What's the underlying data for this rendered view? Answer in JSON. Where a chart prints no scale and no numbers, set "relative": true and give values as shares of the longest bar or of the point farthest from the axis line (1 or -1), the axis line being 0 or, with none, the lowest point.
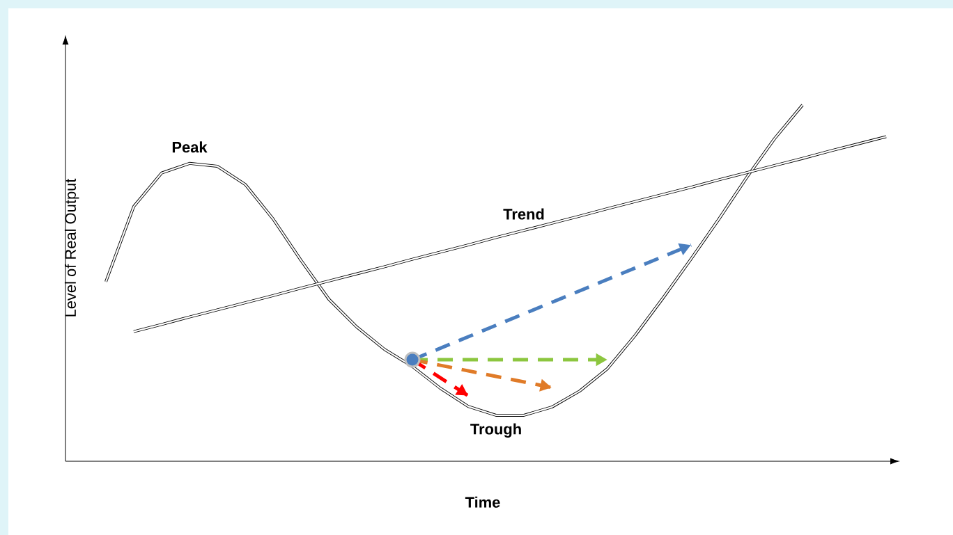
{
  "chart_data": {
    "type": "line",
    "relative": true,
    "xlabel": "Time",
    "ylabel": "Level of Real Output",
    "categories": [
      null,
      null,
      null,
      null,
      null,
      null,
      null,
      null,
      null,
      null,
      null,
      null,
      null,
      null,
      null,
      null,
      null,
      null,
      null,
      null,
      null,
      null,
      null,
      null,
      null,
      null,
      null,
      null,
      null
    ],
    "series": [
      {
        "color": "#000000",
        "values": [
          0.504,
          0.715,
          0.809,
          0.836,
          0.828,
          0.777,
          0.68,
          0.564,
          0.455,
          0.377,
          0.314,
          0.266,
          0.205,
          0.154,
          0.129,
          0.129,
          0.152,
          0.197,
          0.26,
          0.354,
          0.459,
          0.568,
          0.68,
          0.797,
          0.906,
          1.0,
          null,
          null,
          null
        ]
      },
      {
        "color": "#000000",
        "values": [
          null,
          0.364,
          0.384,
          0.405,
          0.425,
          0.445,
          0.465,
          0.486,
          0.506,
          0.526,
          0.546,
          0.567,
          0.587,
          0.607,
          0.628,
          0.648,
          0.668,
          0.688,
          0.709,
          0.729,
          0.749,
          0.769,
          0.79,
          0.81,
          0.83,
          0.85,
          0.871,
          0.891,
          0.911
        ]
      },
      {
        "color": "#4a7ebf",
        "line_style": "dashed",
        "marker": "circle",
        "values": [
          null,
          null,
          null,
          null,
          null,
          null,
          null,
          null,
          null,
          null,
          null,
          0.285,
          null,
          null,
          null,
          null,
          null,
          null,
          null,
          null,
          null,
          0.607,
          null,
          null,
          null,
          null,
          null,
          null,
          null
        ]
      },
      {
        "color": "#8cc63f",
        "line_style": "dashed",
        "values": [
          null,
          null,
          null,
          null,
          null,
          null,
          null,
          null,
          null,
          null,
          null,
          0.285,
          null,
          null,
          null,
          null,
          null,
          null,
          0.285,
          null,
          null,
          null,
          null,
          null,
          null,
          null,
          null,
          null,
          null
        ]
      },
      {
        "color": "#e07b28",
        "line_style": "dashed",
        "values": [
          null,
          null,
          null,
          null,
          null,
          null,
          null,
          null,
          null,
          null,
          null,
          0.285,
          null,
          null,
          null,
          null,
          0.207,
          null,
          null,
          null,
          null,
          null,
          null,
          null,
          null,
          null,
          null,
          null,
          null
        ]
      },
      {
        "color": "#ff0000",
        "line_style": "dashed",
        "values": [
          null,
          null,
          null,
          null,
          null,
          null,
          null,
          null,
          null,
          null,
          null,
          0.285,
          null,
          0.184,
          null,
          null,
          null,
          null,
          null,
          null,
          null,
          null,
          null,
          null,
          null,
          null,
          null,
          null,
          null
        ]
      }
    ],
    "annotations": [
      "Peak",
      "Trend",
      "Trough"
    ]
  }
}
